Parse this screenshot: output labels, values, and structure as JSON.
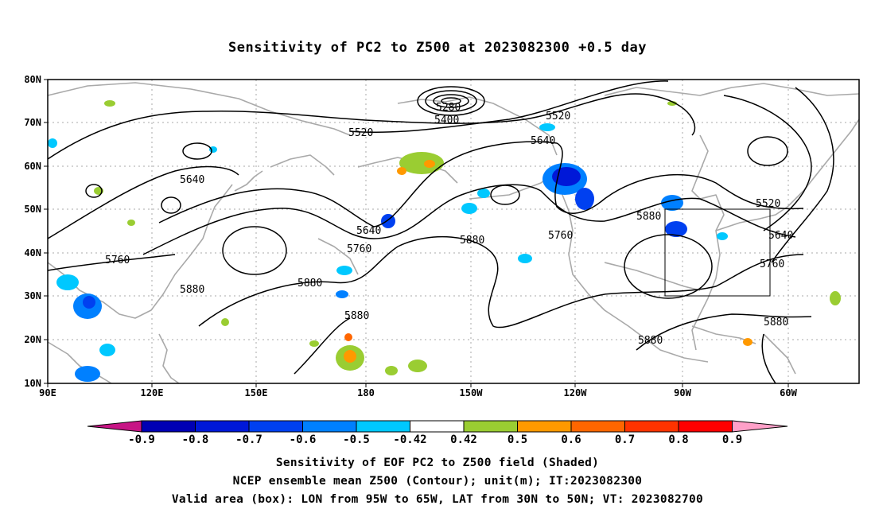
{
  "title": "Sensitivity of PC2 to Z500 at 2023082300 +0.5 day",
  "map": {
    "lat_labels": [
      "80N",
      "70N",
      "60N",
      "50N",
      "40N",
      "30N",
      "20N",
      "10N"
    ],
    "lon_labels": [
      "90E",
      "120E",
      "150E",
      "180",
      "150W",
      "120W",
      "90W",
      "60W"
    ],
    "contour_color": "#000000",
    "coast_color": "#a9a9a9",
    "grid_color": "#a9a9a9",
    "contour_labels": [
      {
        "text": "5280"
      },
      {
        "text": "5400"
      },
      {
        "text": "5520"
      },
      {
        "text": "5520"
      },
      {
        "text": "5520"
      },
      {
        "text": "5640"
      },
      {
        "text": "5640"
      },
      {
        "text": "5640"
      },
      {
        "text": "5640"
      },
      {
        "text": "5760"
      },
      {
        "text": "5760"
      },
      {
        "text": "5760"
      },
      {
        "text": "5760"
      },
      {
        "text": "5880"
      },
      {
        "text": "5880"
      },
      {
        "text": "5880"
      },
      {
        "text": "5880"
      },
      {
        "text": "5880"
      },
      {
        "text": "5880"
      },
      {
        "text": "5880"
      }
    ],
    "valid_box": {
      "lon_range": [
        "95W",
        "65W"
      ],
      "lat_range": [
        "30N",
        "50N"
      ]
    }
  },
  "colorbar": {
    "labels": [
      "-0.9",
      "-0.8",
      "-0.7",
      "-0.6",
      "-0.5",
      "-0.42",
      "0.42",
      "0.5",
      "0.6",
      "0.7",
      "0.8",
      "0.9"
    ],
    "colors": [
      "#c71585",
      "#0000b4",
      "#0018d8",
      "#0040f0",
      "#0080ff",
      "#00c8ff",
      "#ffffff",
      "#9acd32",
      "#ff9900",
      "#ff6600",
      "#ff3300",
      "#ff0000",
      "#ffa0c8"
    ]
  },
  "captions": [
    "Sensitivity of EOF PC2 to Z500 field (Shaded)",
    "NCEP ensemble mean Z500 (Contour); unit(m); IT:2023082300",
    "Valid area (box): LON from 95W to 65W, LAT from 30N to 50N; VT: 2023082700"
  ]
}
